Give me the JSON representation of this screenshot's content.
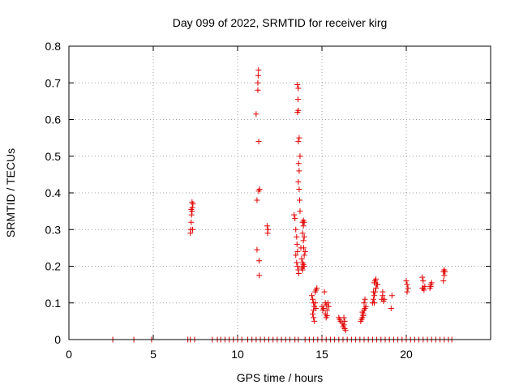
{
  "chart_data": {
    "type": "scatter",
    "title": "Day 099 of 2022, SRMTID for receiver kirg",
    "xlabel": "GPS time / hours",
    "ylabel": "SRMTID / TECUs",
    "xlim": [
      0,
      25
    ],
    "ylim": [
      0,
      0.8
    ],
    "xticks": [
      0,
      5,
      10,
      15,
      20
    ],
    "xtick_labels": [
      "0",
      "5",
      "10",
      "15",
      "20"
    ],
    "yticks": [
      0,
      0.1,
      0.2,
      0.3,
      0.4,
      0.5,
      0.6,
      0.7,
      0.8
    ],
    "ytick_labels": [
      "0",
      "0.1",
      "0.2",
      "0.3",
      "0.4",
      "0.5",
      "0.6",
      "0.7",
      "0.8"
    ],
    "grid": true,
    "marker": "+",
    "marker_color": "#e00000",
    "series": [
      {
        "name": "SRMTID",
        "points": [
          [
            2.6,
            0
          ],
          [
            3.85,
            0
          ],
          [
            4.9,
            0
          ],
          [
            7.05,
            0
          ],
          [
            7.2,
            0
          ],
          [
            7.45,
            0
          ],
          [
            8.5,
            0
          ],
          [
            8.8,
            0
          ],
          [
            9.0,
            0
          ],
          [
            9.25,
            0
          ],
          [
            9.5,
            0
          ],
          [
            9.75,
            0
          ],
          [
            10.0,
            0
          ],
          [
            10.25,
            0
          ],
          [
            10.6,
            0
          ],
          [
            10.85,
            0
          ],
          [
            11.1,
            0
          ],
          [
            11.35,
            0
          ],
          [
            11.6,
            0
          ],
          [
            11.85,
            0
          ],
          [
            12.1,
            0
          ],
          [
            12.35,
            0
          ],
          [
            12.6,
            0
          ],
          [
            12.85,
            0
          ],
          [
            13.1,
            0
          ],
          [
            13.4,
            0
          ],
          [
            13.6,
            0
          ],
          [
            14.0,
            0
          ],
          [
            14.25,
            0
          ],
          [
            14.5,
            0
          ],
          [
            14.75,
            0
          ],
          [
            15.0,
            0
          ],
          [
            15.25,
            0
          ],
          [
            15.5,
            0
          ],
          [
            15.75,
            0
          ],
          [
            16.0,
            0
          ],
          [
            16.25,
            0
          ],
          [
            16.5,
            0
          ],
          [
            16.75,
            0
          ],
          [
            17.0,
            0
          ],
          [
            17.25,
            0
          ],
          [
            17.5,
            0
          ],
          [
            17.75,
            0
          ],
          [
            18.0,
            0
          ],
          [
            18.25,
            0
          ],
          [
            18.5,
            0
          ],
          [
            18.75,
            0
          ],
          [
            19.0,
            0
          ],
          [
            19.25,
            0
          ],
          [
            19.5,
            0
          ],
          [
            19.75,
            0
          ],
          [
            20.0,
            0
          ],
          [
            20.25,
            0
          ],
          [
            20.5,
            0
          ],
          [
            20.75,
            0
          ],
          [
            21.0,
            0
          ],
          [
            21.25,
            0
          ],
          [
            21.5,
            0
          ],
          [
            21.75,
            0
          ],
          [
            22.0,
            0
          ],
          [
            22.25,
            0
          ],
          [
            22.5,
            0
          ],
          [
            22.7,
            0
          ],
          [
            7.2,
            0.29
          ],
          [
            7.22,
            0.3
          ],
          [
            7.25,
            0.32
          ],
          [
            7.27,
            0.34
          ],
          [
            7.3,
            0.35
          ],
          [
            7.32,
            0.36
          ],
          [
            7.35,
            0.37
          ],
          [
            7.3,
            0.375
          ],
          [
            7.25,
            0.355
          ],
          [
            7.33,
            0.3
          ],
          [
            11.1,
            0.615
          ],
          [
            11.2,
            0.7
          ],
          [
            11.22,
            0.72
          ],
          [
            11.24,
            0.735
          ],
          [
            11.2,
            0.68
          ],
          [
            11.25,
            0.54
          ],
          [
            11.3,
            0.41
          ],
          [
            11.25,
            0.405
          ],
          [
            11.15,
            0.38
          ],
          [
            11.15,
            0.245
          ],
          [
            11.28,
            0.215
          ],
          [
            11.28,
            0.175
          ],
          [
            11.75,
            0.31
          ],
          [
            11.8,
            0.3
          ],
          [
            11.78,
            0.29
          ],
          [
            13.35,
            0.34
          ],
          [
            13.4,
            0.33
          ],
          [
            13.45,
            0.3
          ],
          [
            13.5,
            0.28
          ],
          [
            13.52,
            0.26
          ],
          [
            13.55,
            0.24
          ],
          [
            13.45,
            0.23
          ],
          [
            13.5,
            0.21
          ],
          [
            13.55,
            0.2
          ],
          [
            13.6,
            0.19
          ],
          [
            13.62,
            0.18
          ],
          [
            13.55,
            0.695
          ],
          [
            13.6,
            0.685
          ],
          [
            13.58,
            0.655
          ],
          [
            13.6,
            0.625
          ],
          [
            13.55,
            0.62
          ],
          [
            13.65,
            0.55
          ],
          [
            13.6,
            0.54
          ],
          [
            13.7,
            0.5
          ],
          [
            13.62,
            0.48
          ],
          [
            13.65,
            0.46
          ],
          [
            13.6,
            0.43
          ],
          [
            13.65,
            0.41
          ],
          [
            13.68,
            0.38
          ],
          [
            13.7,
            0.35
          ],
          [
            13.75,
            0.25
          ],
          [
            13.8,
            0.22
          ],
          [
            13.85,
            0.21
          ],
          [
            13.9,
            0.2
          ],
          [
            13.95,
            0.2
          ],
          [
            13.85,
            0.19
          ],
          [
            13.8,
            0.195
          ],
          [
            13.9,
            0.205
          ],
          [
            13.85,
            0.32
          ],
          [
            13.9,
            0.325
          ],
          [
            13.95,
            0.32
          ],
          [
            13.9,
            0.31
          ],
          [
            13.85,
            0.29
          ],
          [
            13.95,
            0.28
          ],
          [
            13.9,
            0.27
          ],
          [
            13.92,
            0.25
          ],
          [
            13.95,
            0.23
          ],
          [
            14.0,
            0.24
          ],
          [
            14.4,
            0.12
          ],
          [
            14.45,
            0.11
          ],
          [
            14.5,
            0.1
          ],
          [
            14.55,
            0.09
          ],
          [
            14.5,
            0.08
          ],
          [
            14.45,
            0.07
          ],
          [
            14.5,
            0.06
          ],
          [
            14.55,
            0.05
          ],
          [
            14.6,
            0.13
          ],
          [
            14.65,
            0.135
          ],
          [
            14.7,
            0.14
          ],
          [
            14.6,
            0.1
          ],
          [
            14.65,
            0.085
          ],
          [
            15.0,
            0.09
          ],
          [
            15.05,
            0.08
          ],
          [
            15.1,
            0.085
          ],
          [
            15.15,
            0.13
          ],
          [
            15.2,
            0.1
          ],
          [
            15.25,
            0.095
          ],
          [
            15.3,
            0.08
          ],
          [
            15.2,
            0.07
          ],
          [
            15.25,
            0.06
          ],
          [
            15.35,
            0.1
          ],
          [
            15.4,
            0.09
          ],
          [
            15.3,
            0.065
          ],
          [
            16.0,
            0.06
          ],
          [
            16.05,
            0.055
          ],
          [
            16.1,
            0.05
          ],
          [
            16.2,
            0.045
          ],
          [
            16.3,
            0.04
          ],
          [
            16.35,
            0.03
          ],
          [
            16.4,
            0.025
          ],
          [
            16.3,
            0.06
          ],
          [
            16.35,
            0.05
          ],
          [
            16.25,
            0.035
          ],
          [
            17.3,
            0.05
          ],
          [
            17.35,
            0.055
          ],
          [
            17.4,
            0.06
          ],
          [
            17.45,
            0.07
          ],
          [
            17.5,
            0.08
          ],
          [
            17.55,
            0.085
          ],
          [
            17.6,
            0.09
          ],
          [
            17.5,
            0.1
          ],
          [
            17.55,
            0.11
          ],
          [
            17.45,
            0.065
          ],
          [
            17.4,
            0.075
          ],
          [
            18.0,
            0.1
          ],
          [
            18.05,
            0.11
          ],
          [
            18.1,
            0.12
          ],
          [
            18.15,
            0.13
          ],
          [
            18.2,
            0.14
          ],
          [
            18.25,
            0.15
          ],
          [
            18.1,
            0.155
          ],
          [
            18.15,
            0.16
          ],
          [
            18.2,
            0.165
          ],
          [
            18.3,
            0.15
          ],
          [
            18.05,
            0.13
          ],
          [
            18.1,
            0.1
          ],
          [
            18.55,
            0.11
          ],
          [
            18.6,
            0.12
          ],
          [
            18.65,
            0.105
          ],
          [
            18.7,
            0.11
          ],
          [
            18.6,
            0.13
          ],
          [
            19.1,
            0.085
          ],
          [
            19.15,
            0.12
          ],
          [
            20.0,
            0.16
          ],
          [
            20.05,
            0.13
          ],
          [
            20.1,
            0.14
          ],
          [
            20.05,
            0.15
          ],
          [
            20.95,
            0.17
          ],
          [
            21.0,
            0.14
          ],
          [
            21.05,
            0.135
          ],
          [
            21.1,
            0.145
          ],
          [
            21.0,
            0.16
          ],
          [
            20.95,
            0.14
          ],
          [
            21.4,
            0.14
          ],
          [
            21.45,
            0.15
          ],
          [
            21.5,
            0.155
          ],
          [
            21.45,
            0.145
          ],
          [
            22.2,
            0.16
          ],
          [
            22.25,
            0.175
          ],
          [
            22.3,
            0.185
          ],
          [
            22.25,
            0.19
          ],
          [
            22.2,
            0.185
          ]
        ]
      }
    ]
  }
}
